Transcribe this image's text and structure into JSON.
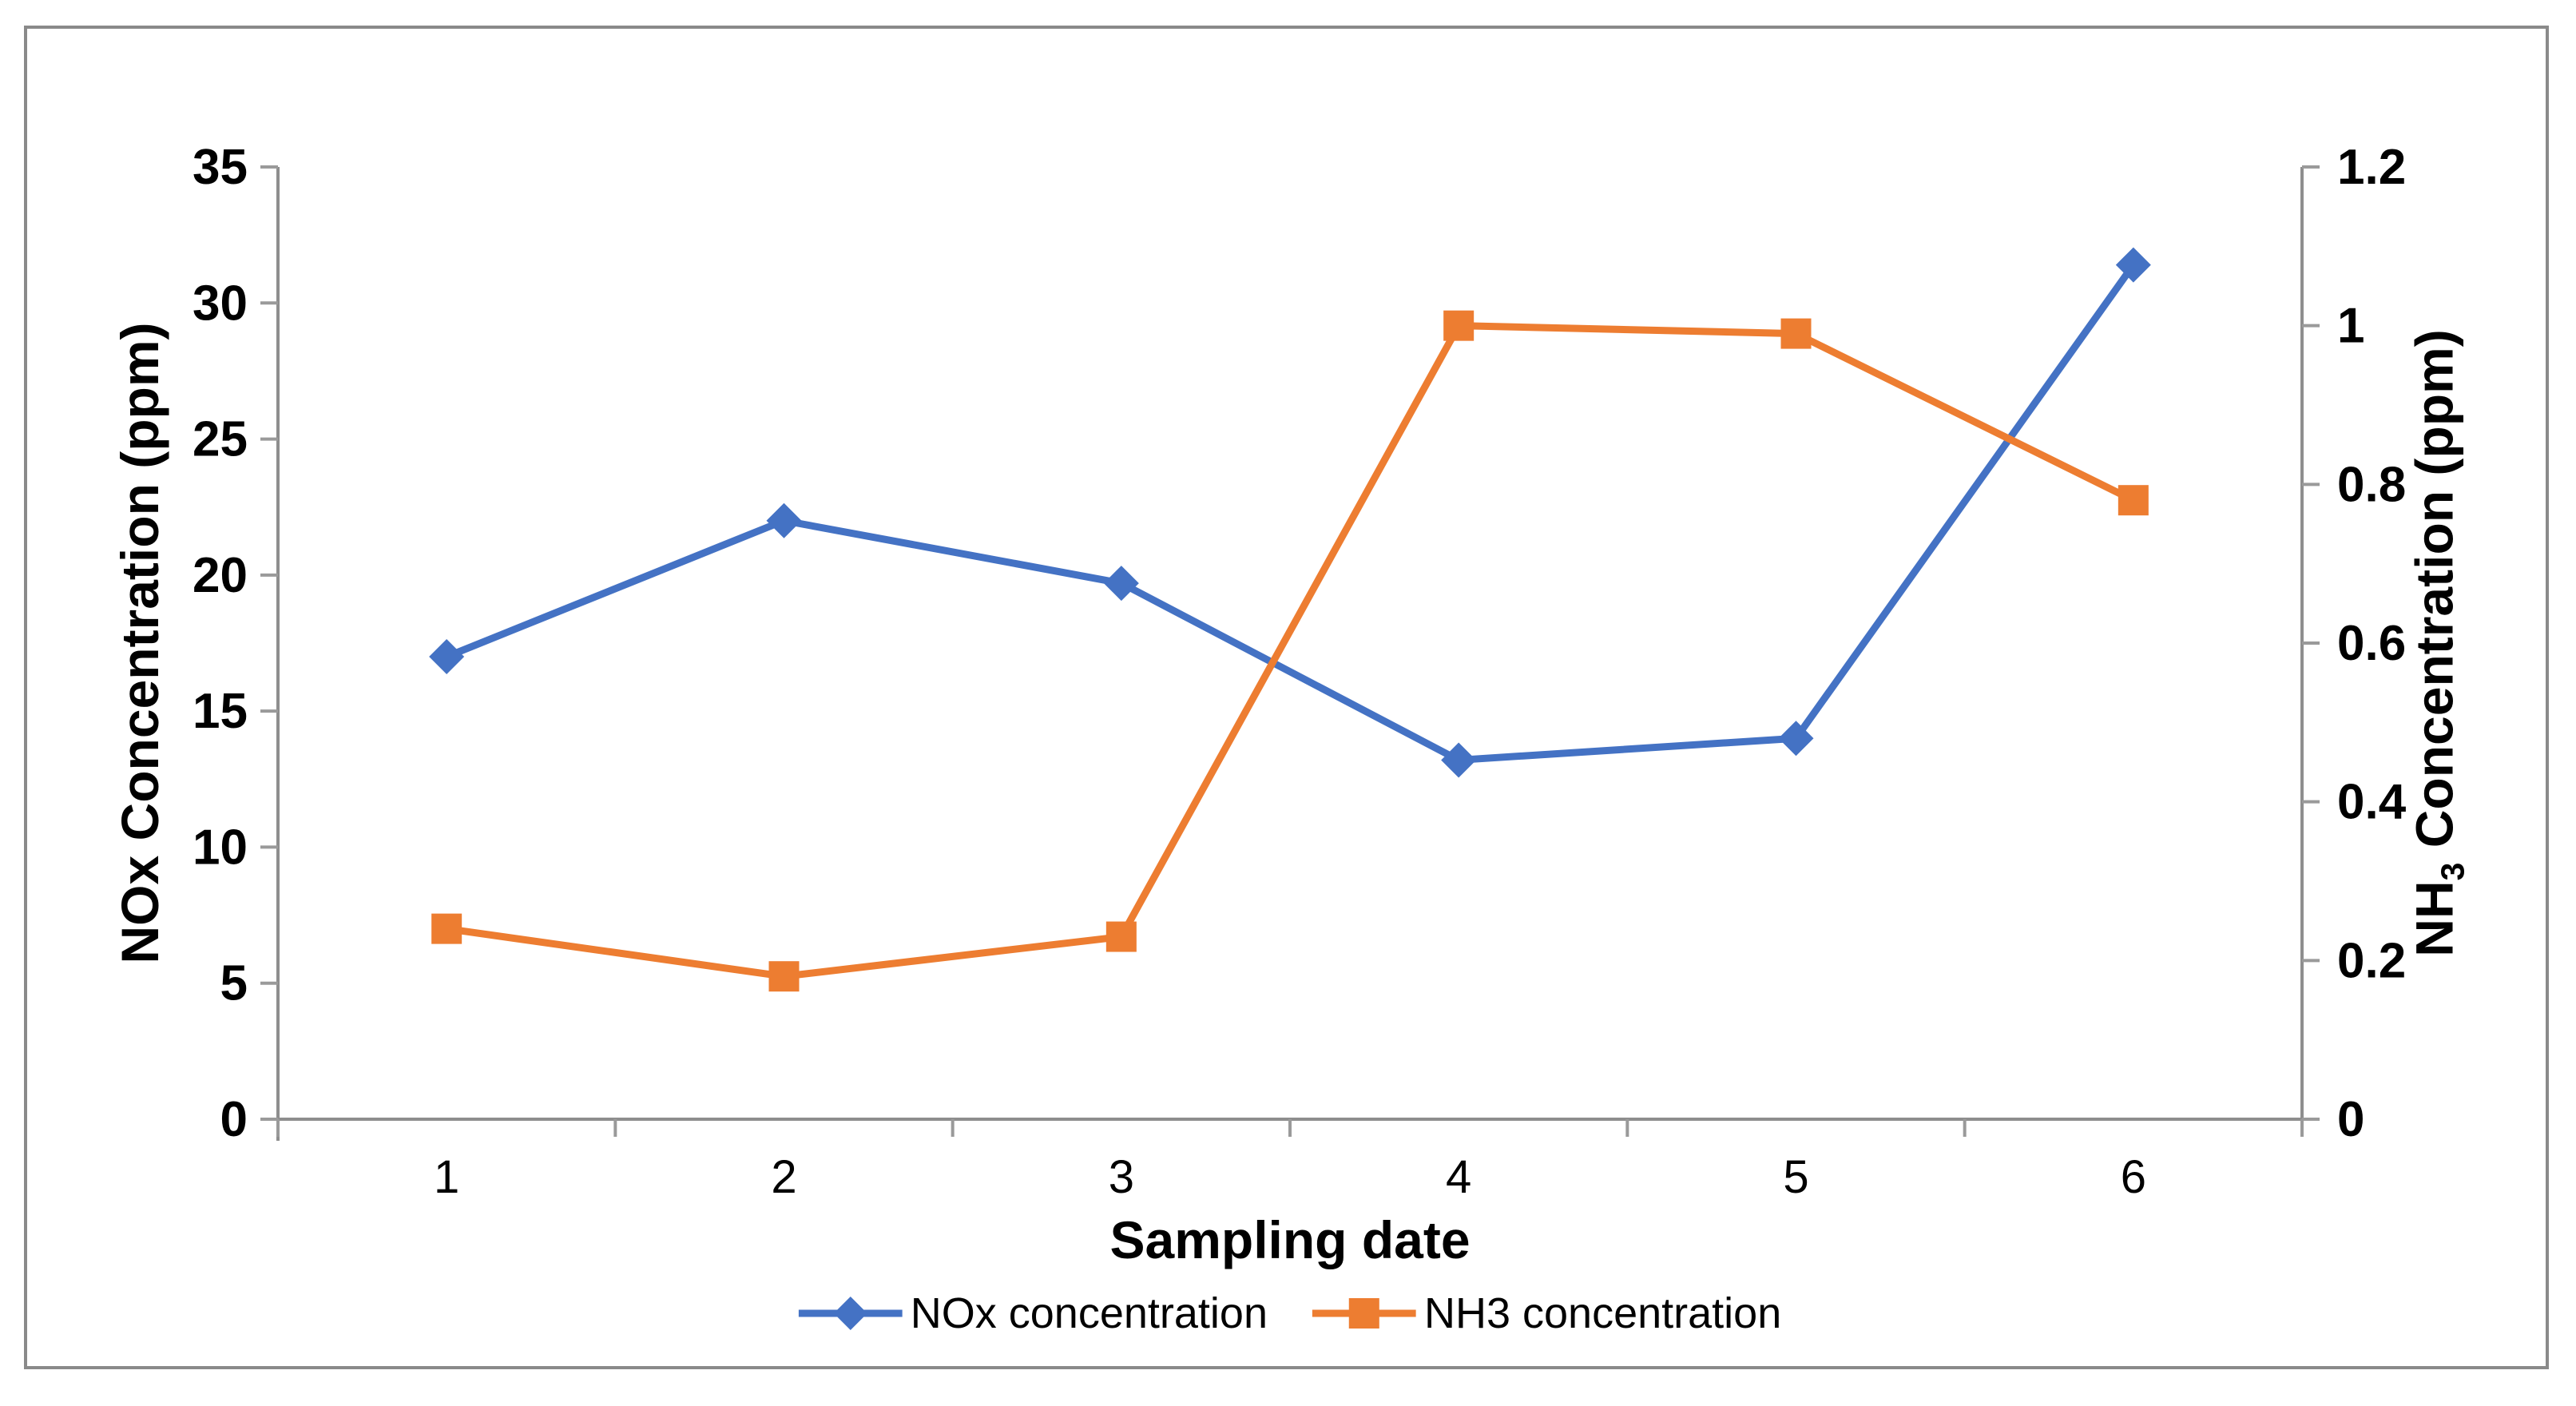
{
  "page": {
    "background": "#ffffff",
    "frame_border_color": "#8a8a8a"
  },
  "axis_style": {
    "line_color": "#8e8e8e",
    "tick_color": "#9a9a9a",
    "text_color": "#000000"
  },
  "chart_data": {
    "type": "line",
    "categories": [
      "1",
      "2",
      "3",
      "4",
      "5",
      "6"
    ],
    "x_axis": {
      "label": "Sampling date"
    },
    "y_axis_left": {
      "label": "NOx Concentration (ppm)",
      "min": 0,
      "max": 35,
      "tick_step": 5,
      "ticks": [
        "0",
        "5",
        "10",
        "15",
        "20",
        "25",
        "30",
        "35"
      ]
    },
    "y_axis_right": {
      "label_prefix": "NH",
      "label_subscript": "3",
      "label_suffix": " Concentration (ppm)",
      "min": 0,
      "max": 1.2,
      "tick_step": 0.2,
      "ticks": [
        "0",
        "0.2",
        "0.4",
        "0.6",
        "0.8",
        "1",
        "1.2"
      ]
    },
    "series": [
      {
        "name": "NOx concentration",
        "axis": "left",
        "color": "#4472C4",
        "marker": "diamond",
        "values": [
          17,
          22,
          19.7,
          13.2,
          14,
          31.4
        ]
      },
      {
        "name": "NH3 concentration",
        "axis": "right",
        "color": "#ED7D31",
        "marker": "square",
        "values": [
          0.24,
          0.18,
          0.23,
          1.0,
          0.99,
          0.78
        ]
      }
    ],
    "legend_position": "bottom",
    "grid": false
  }
}
